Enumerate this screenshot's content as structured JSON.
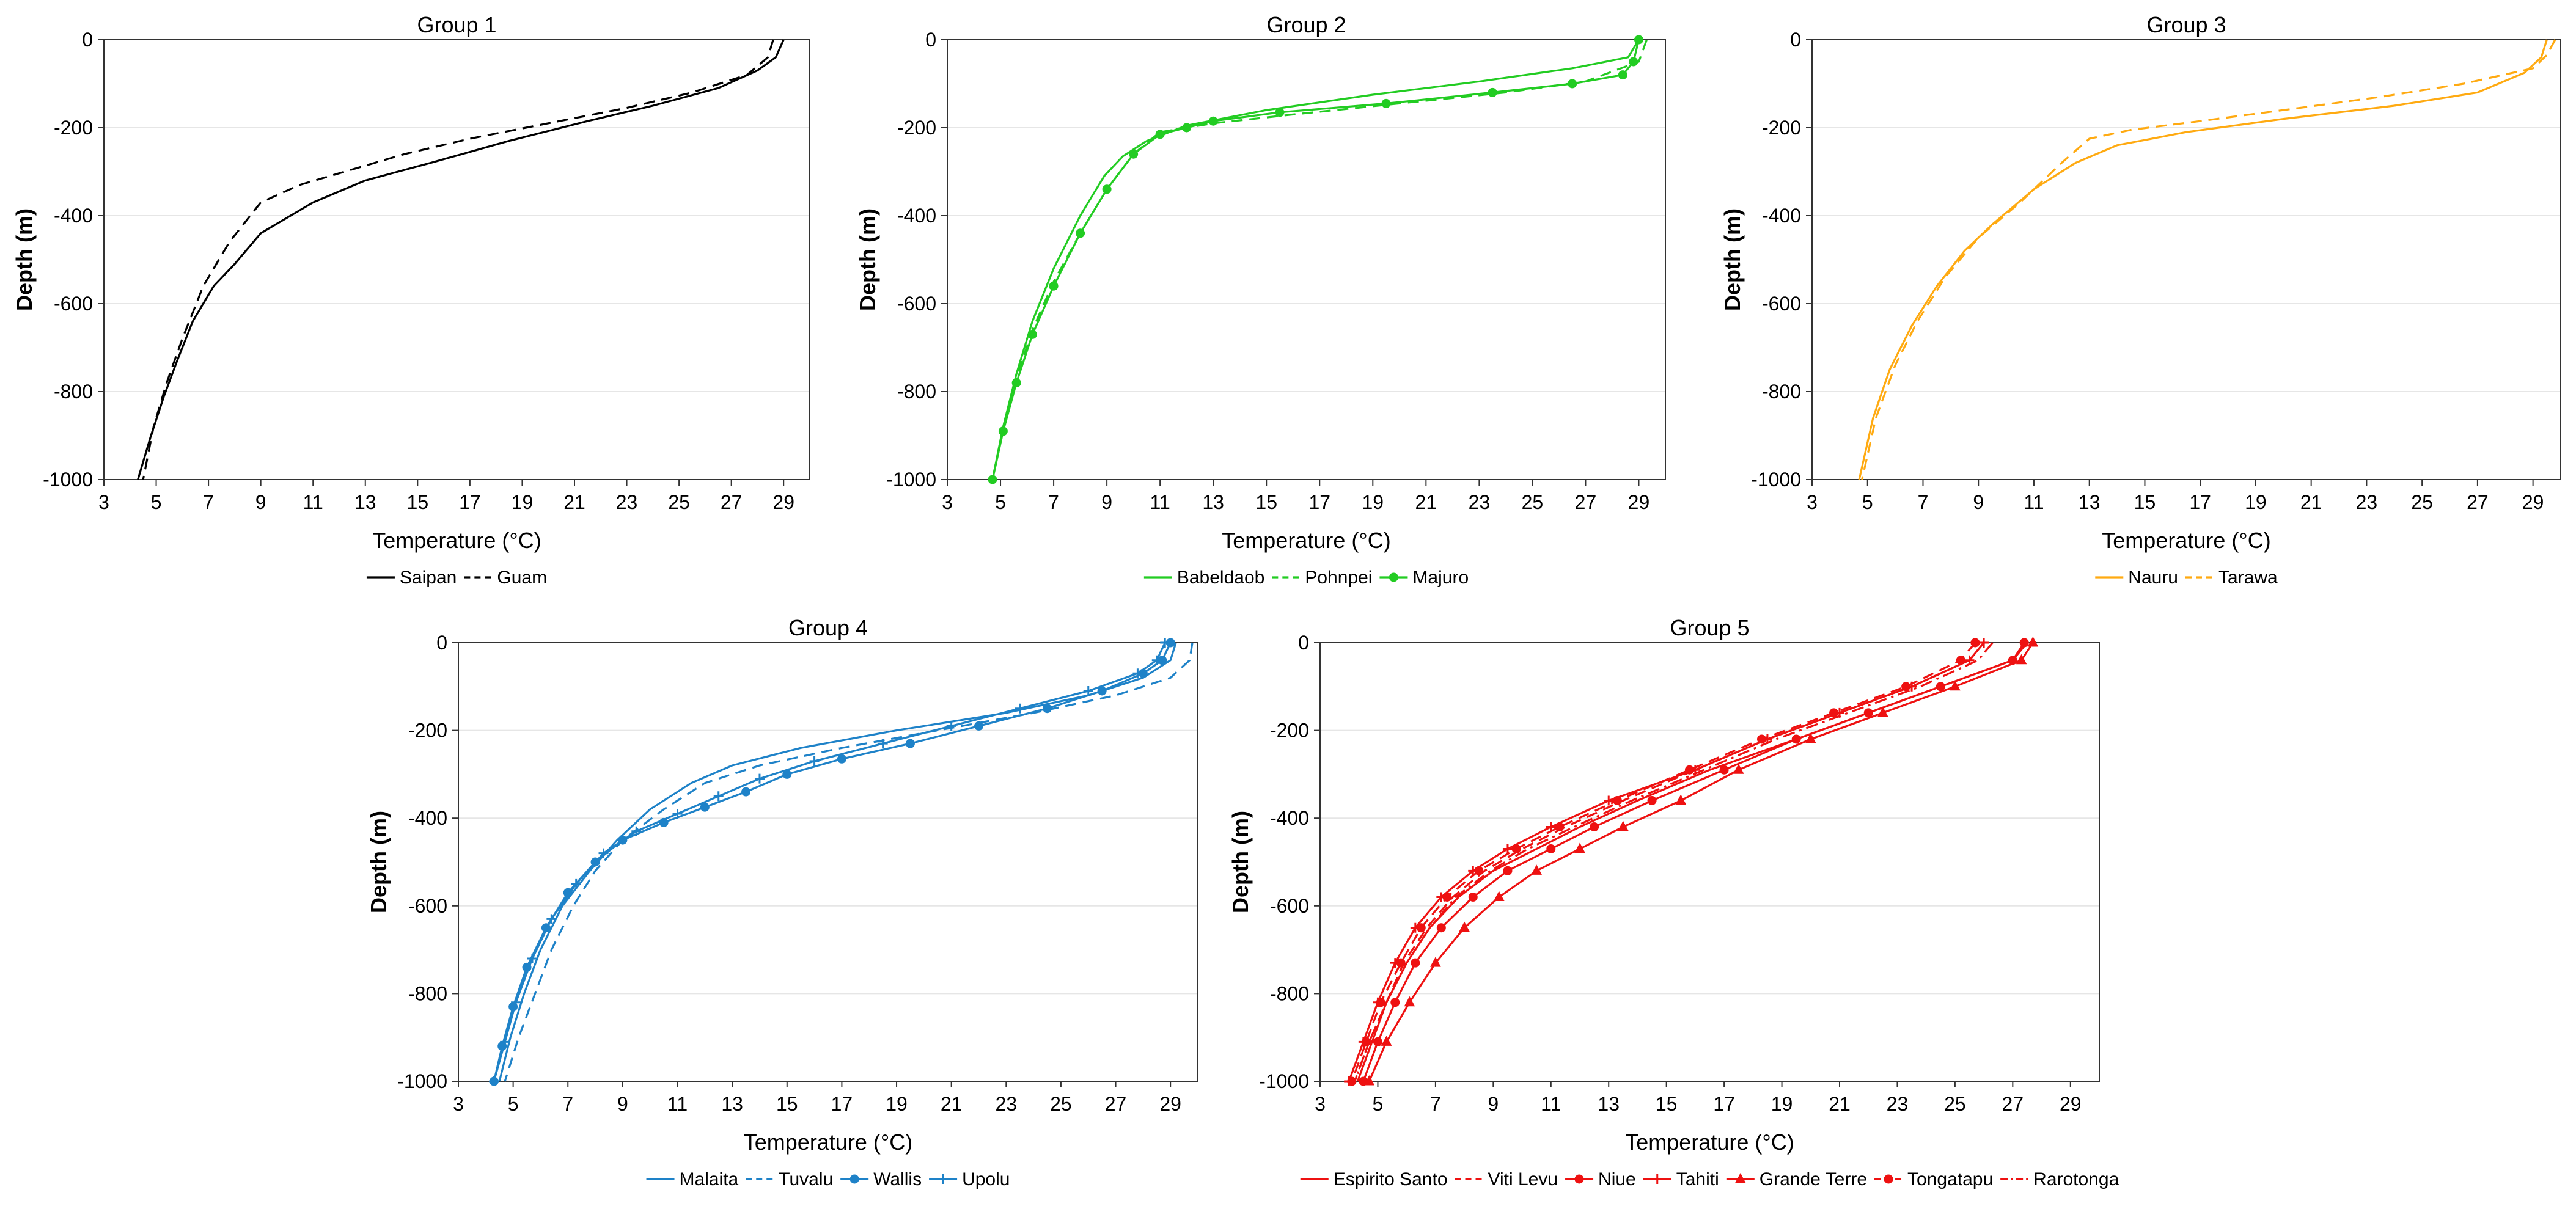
{
  "chart_data": [
    {
      "type": "line",
      "title": "Group 1",
      "xlabel": "Temperature (°C)",
      "ylabel": "Depth (m)",
      "xlim": [
        3,
        30
      ],
      "ylim": [
        -1000,
        0
      ],
      "xticks": [
        3,
        5,
        7,
        9,
        11,
        13,
        15,
        17,
        19,
        21,
        23,
        25,
        27,
        29
      ],
      "yticks": [
        0,
        -200,
        -400,
        -600,
        -800,
        -1000
      ],
      "series": [
        {
          "name": "Saipan",
          "color": "#000000",
          "dash": "solid",
          "marker": "none",
          "x": [
            29.0,
            28.7,
            28.0,
            26.5,
            24.0,
            21.5,
            18.5,
            15.5,
            13.0,
            11.0,
            9.0,
            8.0,
            7.2,
            6.4,
            5.8,
            5.3,
            4.8,
            4.3
          ],
          "y": [
            0,
            -40,
            -70,
            -110,
            -150,
            -185,
            -230,
            -280,
            -320,
            -370,
            -440,
            -510,
            -560,
            -640,
            -730,
            -810,
            -900,
            -1000
          ]
        },
        {
          "name": "Guam",
          "color": "#000000",
          "dash": "dashed",
          "marker": "none",
          "x": [
            28.6,
            28.4,
            27.6,
            25.5,
            23.0,
            20.0,
            17.0,
            14.5,
            12.5,
            10.5,
            9.0,
            7.8,
            6.8,
            6.0,
            5.4,
            4.9,
            4.5
          ],
          "y": [
            0,
            -40,
            -80,
            -120,
            -155,
            -190,
            -225,
            -260,
            -295,
            -330,
            -370,
            -460,
            -560,
            -680,
            -780,
            -880,
            -1000
          ]
        }
      ],
      "legend": "bottom"
    },
    {
      "type": "line",
      "title": "Group 2",
      "xlabel": "Temperature (°C)",
      "ylabel": "Depth (m)",
      "xlim": [
        3,
        30
      ],
      "ylim": [
        -1000,
        0
      ],
      "xticks": [
        3,
        5,
        7,
        9,
        11,
        13,
        15,
        17,
        19,
        21,
        23,
        25,
        27,
        29
      ],
      "yticks": [
        0,
        -200,
        -400,
        -600,
        -800,
        -1000
      ],
      "series": [
        {
          "name": "Babeldaob",
          "color": "#22cc22",
          "dash": "solid",
          "marker": "none",
          "x": [
            29.0,
            28.6,
            26.5,
            23.0,
            19.0,
            15.0,
            12.0,
            10.5,
            9.6,
            8.9,
            8.0,
            7.0,
            6.2,
            5.6,
            5.1,
            4.7
          ],
          "y": [
            0,
            -40,
            -65,
            -95,
            -125,
            -160,
            -195,
            -230,
            -265,
            -310,
            -400,
            -520,
            -640,
            -760,
            -880,
            -1000
          ]
        },
        {
          "name": "Pohnpei",
          "color": "#22cc22",
          "dash": "dashed",
          "marker": "none",
          "x": [
            29.3,
            29.0,
            27.0,
            24.0,
            20.0,
            16.0,
            13.0,
            11.0,
            10.0,
            9.0,
            8.0,
            7.0,
            6.2,
            5.6,
            5.1,
            4.7
          ],
          "y": [
            0,
            -50,
            -95,
            -120,
            -145,
            -170,
            -190,
            -210,
            -260,
            -340,
            -440,
            -550,
            -660,
            -770,
            -880,
            -1000
          ]
        },
        {
          "name": "Majuro",
          "color": "#22cc22",
          "dash": "solid",
          "marker": "circle",
          "x": [
            29.0,
            28.8,
            28.4,
            26.5,
            23.5,
            19.5,
            15.5,
            13.0,
            12.0,
            11.0,
            10.0,
            9.0,
            8.0,
            7.0,
            6.2,
            5.6,
            5.1,
            4.7
          ],
          "y": [
            0,
            -50,
            -80,
            -100,
            -120,
            -145,
            -165,
            -185,
            -200,
            -215,
            -260,
            -340,
            -440,
            -560,
            -670,
            -780,
            -890,
            -1000
          ]
        }
      ],
      "legend": "bottom"
    },
    {
      "type": "line",
      "title": "Group 3",
      "xlabel": "Temperature (°C)",
      "ylabel": "Depth (m)",
      "xlim": [
        3,
        30
      ],
      "ylim": [
        -1000,
        0
      ],
      "xticks": [
        3,
        5,
        7,
        9,
        11,
        13,
        15,
        17,
        19,
        21,
        23,
        25,
        27,
        29
      ],
      "yticks": [
        0,
        -200,
        -400,
        -600,
        -800,
        -1000
      ],
      "series": [
        {
          "name": "Nauru",
          "color": "#ffaa11",
          "dash": "solid",
          "marker": "none",
          "x": [
            29.5,
            29.3,
            28.7,
            27.0,
            24.0,
            20.0,
            16.5,
            14.0,
            12.5,
            11.0,
            9.5,
            8.5,
            7.5,
            6.6,
            5.8,
            5.2,
            4.7
          ],
          "y": [
            0,
            -40,
            -75,
            -120,
            -150,
            -180,
            -210,
            -240,
            -280,
            -340,
            -420,
            -480,
            -560,
            -650,
            -750,
            -860,
            -1000
          ]
        },
        {
          "name": "Tarawa",
          "color": "#ffaa11",
          "dash": "dashed",
          "marker": "none",
          "x": [
            29.8,
            29.5,
            29.0,
            26.5,
            23.5,
            20.0,
            17.0,
            14.5,
            13.0,
            12.0,
            10.5,
            9.0,
            7.8,
            6.8,
            6.0,
            5.3,
            4.8
          ],
          "y": [
            0,
            -35,
            -65,
            -100,
            -130,
            -160,
            -185,
            -205,
            -225,
            -280,
            -370,
            -450,
            -540,
            -640,
            -740,
            -860,
            -1000
          ]
        }
      ],
      "legend": "bottom"
    },
    {
      "type": "line",
      "title": "Group 4",
      "xlabel": "Temperature (°C)",
      "ylabel": "Depth (m)",
      "xlim": [
        3,
        30
      ],
      "ylim": [
        -1000,
        0
      ],
      "xticks": [
        3,
        5,
        7,
        9,
        11,
        13,
        15,
        17,
        19,
        21,
        23,
        25,
        27,
        29
      ],
      "yticks": [
        0,
        -200,
        -400,
        -600,
        -800,
        -1000
      ],
      "series": [
        {
          "name": "Malaita",
          "color": "#1e82c8",
          "dash": "solid",
          "marker": "none",
          "x": [
            29.2,
            29.0,
            28.0,
            26.0,
            23.0,
            19.0,
            15.5,
            13.0,
            11.5,
            10.0,
            8.8,
            7.8,
            6.8,
            6.0,
            5.4,
            4.9,
            4.5
          ],
          "y": [
            0,
            -40,
            -80,
            -120,
            -160,
            -200,
            -240,
            -280,
            -320,
            -380,
            -450,
            -520,
            -600,
            -700,
            -800,
            -900,
            -1000
          ]
        },
        {
          "name": "Tuvalu",
          "color": "#1e82c8",
          "dash": "dashed",
          "marker": "none",
          "x": [
            29.8,
            29.7,
            29.0,
            27.0,
            24.0,
            20.5,
            17.0,
            14.0,
            12.0,
            10.5,
            9.0,
            8.0,
            7.2,
            6.4,
            5.8,
            5.2,
            4.7
          ],
          "y": [
            0,
            -40,
            -80,
            -120,
            -160,
            -200,
            -240,
            -280,
            -320,
            -380,
            -450,
            -520,
            -600,
            -700,
            -800,
            -900,
            -1000
          ]
        },
        {
          "name": "Wallis",
          "color": "#1e82c8",
          "dash": "solid",
          "marker": "circle",
          "x": [
            29.0,
            28.7,
            28.0,
            26.5,
            24.5,
            22.0,
            19.5,
            17.0,
            15.0,
            13.5,
            12.0,
            10.5,
            9.0,
            8.0,
            7.0,
            6.2,
            5.5,
            5.0,
            4.6,
            4.3
          ],
          "y": [
            0,
            -40,
            -70,
            -110,
            -150,
            -190,
            -230,
            -265,
            -300,
            -340,
            -375,
            -410,
            -450,
            -500,
            -570,
            -650,
            -740,
            -830,
            -920,
            -1000
          ]
        },
        {
          "name": "Upolu",
          "color": "#1e82c8",
          "dash": "solid",
          "marker": "plus",
          "x": [
            28.8,
            28.5,
            27.8,
            26.0,
            23.5,
            21.0,
            18.5,
            16.0,
            14.0,
            12.5,
            11.0,
            9.5,
            8.3,
            7.3,
            6.4,
            5.7,
            5.1,
            4.7,
            4.3
          ],
          "y": [
            0,
            -40,
            -70,
            -110,
            -150,
            -190,
            -230,
            -270,
            -310,
            -350,
            -390,
            -430,
            -480,
            -550,
            -630,
            -720,
            -820,
            -910,
            -1000
          ]
        }
      ],
      "legend": "bottom"
    },
    {
      "type": "line",
      "title": "Group 5",
      "xlabel": "Temperature (°C)",
      "ylabel": "Depth (m)",
      "xlim": [
        3,
        30
      ],
      "ylim": [
        -1000,
        0
      ],
      "xticks": [
        3,
        5,
        7,
        9,
        11,
        13,
        15,
        17,
        19,
        21,
        23,
        25,
        27,
        29
      ],
      "yticks": [
        0,
        -200,
        -400,
        -600,
        -800,
        -1000
      ],
      "series": [
        {
          "name": "Espirito Santo",
          "color": "#ee1111",
          "dash": "solid",
          "marker": "none",
          "x": [
            27.5,
            27.0,
            24.5,
            22.0,
            19.5,
            16.5,
            14.0,
            12.0,
            10.5,
            9.0,
            7.8,
            6.8,
            6.0,
            5.3,
            4.8,
            4.3
          ],
          "y": [
            0,
            -40,
            -100,
            -160,
            -220,
            -290,
            -360,
            -420,
            -470,
            -520,
            -580,
            -650,
            -730,
            -820,
            -910,
            -1000
          ]
        },
        {
          "name": "Viti Levu",
          "color": "#ee1111",
          "dash": "dashed",
          "marker": "none",
          "x": [
            26.0,
            25.5,
            23.5,
            21.0,
            18.5,
            16.0,
            13.5,
            11.5,
            10.0,
            8.7,
            7.6,
            6.7,
            5.9,
            5.3,
            4.7,
            4.2
          ],
          "y": [
            0,
            -40,
            -100,
            -160,
            -220,
            -290,
            -360,
            -420,
            -470,
            -520,
            -580,
            -650,
            -730,
            -820,
            -910,
            -1000
          ]
        },
        {
          "name": "Niue",
          "color": "#ee1111",
          "dash": "solid",
          "marker": "circle",
          "x": [
            27.4,
            27.0,
            24.5,
            22.0,
            19.5,
            17.0,
            14.5,
            12.5,
            11.0,
            9.5,
            8.3,
            7.2,
            6.3,
            5.6,
            5.0,
            4.5
          ],
          "y": [
            0,
            -40,
            -100,
            -160,
            -220,
            -290,
            -360,
            -420,
            -470,
            -520,
            -580,
            -650,
            -730,
            -820,
            -910,
            -1000
          ]
        },
        {
          "name": "Tahiti",
          "color": "#ee1111",
          "dash": "solid",
          "marker": "plus",
          "x": [
            26.0,
            25.5,
            23.5,
            21.0,
            18.5,
            16.0,
            13.0,
            11.0,
            9.5,
            8.3,
            7.2,
            6.3,
            5.6,
            5.0,
            4.5,
            4.0
          ],
          "y": [
            0,
            -40,
            -100,
            -160,
            -220,
            -290,
            -360,
            -420,
            -470,
            -520,
            -580,
            -650,
            -730,
            -820,
            -910,
            -1000
          ]
        },
        {
          "name": "Grande Terre",
          "color": "#ee1111",
          "dash": "solid",
          "marker": "triangle",
          "x": [
            27.7,
            27.3,
            25.0,
            22.5,
            20.0,
            17.5,
            15.5,
            13.5,
            12.0,
            10.5,
            9.2,
            8.0,
            7.0,
            6.1,
            5.3,
            4.7
          ],
          "y": [
            0,
            -40,
            -100,
            -160,
            -220,
            -290,
            -360,
            -420,
            -470,
            -520,
            -580,
            -650,
            -730,
            -820,
            -910,
            -1000
          ]
        },
        {
          "name": "Tongatapu",
          "color": "#ee1111",
          "dash": "dashed",
          "marker": "circle",
          "x": [
            25.7,
            25.2,
            23.3,
            20.8,
            18.3,
            15.8,
            13.3,
            11.3,
            9.8,
            8.5,
            7.4,
            6.5,
            5.8,
            5.1,
            4.6,
            4.1
          ],
          "y": [
            0,
            -40,
            -100,
            -160,
            -220,
            -290,
            -360,
            -420,
            -470,
            -520,
            -580,
            -650,
            -730,
            -820,
            -910,
            -1000
          ]
        },
        {
          "name": "Rarotonga",
          "color": "#ee1111",
          "dash": "dashdot",
          "marker": "none",
          "x": [
            26.3,
            25.8,
            23.8,
            21.3,
            18.8,
            16.3,
            13.8,
            11.8,
            10.2,
            8.9,
            7.7,
            6.8,
            6.0,
            5.3,
            4.7,
            4.2
          ],
          "y": [
            0,
            -40,
            -100,
            -160,
            -220,
            -290,
            -360,
            -420,
            -470,
            -520,
            -580,
            -650,
            -730,
            -820,
            -910,
            -1000
          ]
        }
      ],
      "legend": "bottom"
    }
  ]
}
